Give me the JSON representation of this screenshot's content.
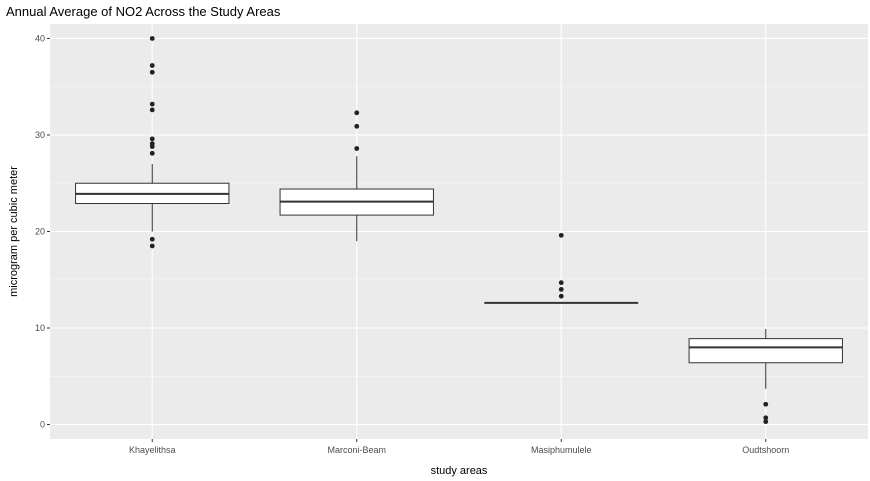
{
  "chart_data": {
    "type": "boxplot",
    "title": "Annual Average of NO2 Across the Study Areas",
    "xlabel": "study areas",
    "ylabel": "microgram per cubic meter",
    "ylim": [
      -1.5,
      41.5
    ],
    "yticks": [
      0,
      10,
      20,
      30,
      40
    ],
    "grid": true,
    "background": "#ebebeb",
    "categories": [
      "Khayelithsa",
      "Marconi-Beam",
      "Masiphumulele",
      "Oudtshoorn"
    ],
    "boxes": [
      {
        "category": "Khayelithsa",
        "whisker_low": 20.0,
        "q1": 22.9,
        "median": 23.9,
        "q3": 25.0,
        "whisker_high": 27.0,
        "outliers": [
          18.5,
          19.2,
          28.1,
          28.8,
          29.1,
          29.6,
          32.6,
          33.2,
          36.5,
          37.2,
          40.0
        ]
      },
      {
        "category": "Marconi-Beam",
        "whisker_low": 19.0,
        "q1": 21.7,
        "median": 23.1,
        "q3": 24.4,
        "whisker_high": 27.8,
        "outliers": [
          28.6,
          30.9,
          32.3
        ]
      },
      {
        "category": "Masiphumulele",
        "whisker_low": 12.6,
        "q1": 12.6,
        "median": 12.6,
        "q3": 12.6,
        "whisker_high": 12.6,
        "outliers": [
          13.3,
          14.0,
          14.7,
          19.6
        ]
      },
      {
        "category": "Oudtshoorn",
        "whisker_low": 3.7,
        "q1": 6.4,
        "median": 8.0,
        "q3": 8.9,
        "whisker_high": 9.9,
        "outliers": [
          0.3,
          0.7,
          2.1
        ]
      }
    ]
  }
}
